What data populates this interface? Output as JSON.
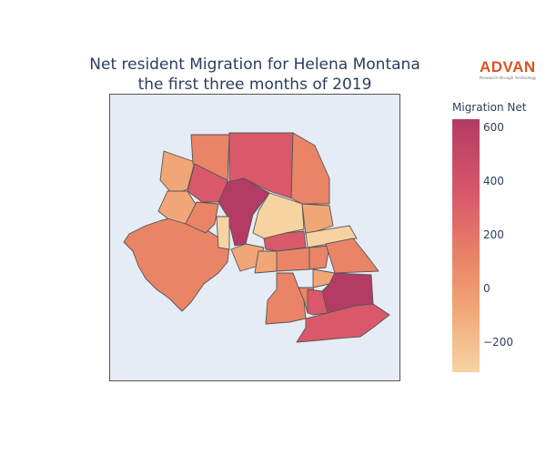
{
  "title": {
    "line1": "Net resident Migration for Helena Montana",
    "line2": "the first three months of 2019"
  },
  "logo": {
    "name": "ADVAN",
    "tagline": "Research through Technology",
    "color": "#d9531e"
  },
  "legend": {
    "title": "Migration Net",
    "ticks": [
      "600",
      "400",
      "200",
      "0",
      "−200"
    ],
    "range": [
      -310,
      630
    ],
    "colorscale": [
      "#f7d3a2",
      "#f1a677",
      "#e98467",
      "#d9596a",
      "#b33b64"
    ]
  },
  "map": {
    "background": "#e5ecf6",
    "border_color": "#555555",
    "region_fill_colors": [
      "#b33b64",
      "#d9596a",
      "#e98467",
      "#f1a677",
      "#f7d3a2"
    ]
  }
}
